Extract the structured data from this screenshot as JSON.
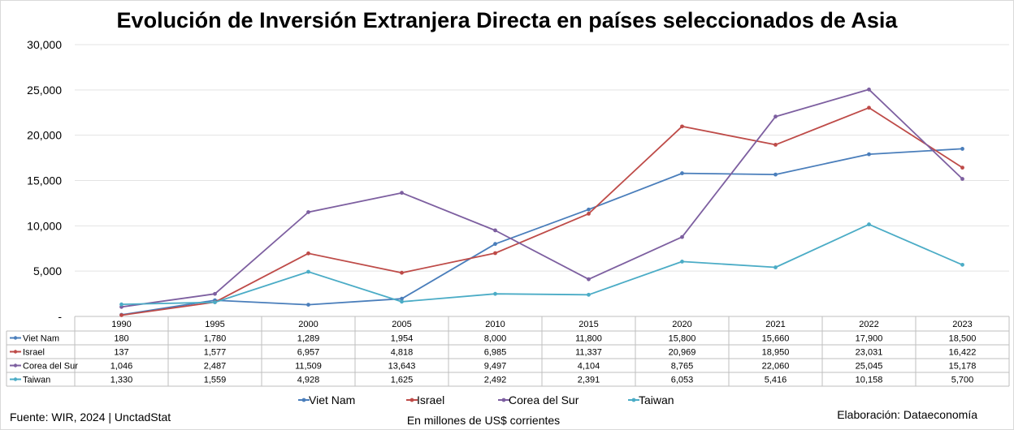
{
  "chart_data": {
    "type": "line",
    "title": "Evolución de Inversión Extranjera Directa en países seleccionados de Asia",
    "categories": [
      "1990",
      "1995",
      "2000",
      "2005",
      "2010",
      "2015",
      "2020",
      "2021",
      "2022",
      "2023"
    ],
    "series": [
      {
        "name": "Viet Nam",
        "color": "#4a7ebb",
        "values": [
          180,
          1780,
          1289,
          1954,
          8000,
          11800,
          15800,
          15660,
          17900,
          18500
        ],
        "labels": [
          "180",
          "1,780",
          "1,289",
          "1,954",
          "8,000",
          "11,800",
          "15,800",
          "15,660",
          "17,900",
          "18,500"
        ]
      },
      {
        "name": "Israel",
        "color": "#be4b48",
        "values": [
          137,
          1577,
          6957,
          4818,
          6985,
          11337,
          20969,
          18950,
          23031,
          16422
        ],
        "labels": [
          "137",
          "1,577",
          "6,957",
          "4,818",
          "6,985",
          "11,337",
          "20,969",
          "18,950",
          "23,031",
          "16,422"
        ]
      },
      {
        "name": "Corea del Sur",
        "color": "#7d5fa0",
        "values": [
          1046,
          2487,
          11509,
          13643,
          9497,
          4104,
          8765,
          22060,
          25045,
          15178
        ],
        "labels": [
          "1,046",
          "2,487",
          "11,509",
          "13,643",
          "9,497",
          "4,104",
          "8,765",
          "22,060",
          "25,045",
          "15,178"
        ]
      },
      {
        "name": "Taiwan",
        "color": "#4bacc6",
        "values": [
          1330,
          1559,
          4928,
          1625,
          2492,
          2391,
          6053,
          5416,
          10158,
          5700
        ],
        "labels": [
          "1,330",
          "1,559",
          "4,928",
          "1,625",
          "2,492",
          "2,391",
          "6,053",
          "5,416",
          "10,158",
          "5,700"
        ]
      }
    ],
    "yticks": [
      "-",
      "5,000",
      "10,000",
      "15,000",
      "20,000",
      "25,000",
      "30,000"
    ],
    "ylim": [
      0,
      30000
    ],
    "grid": true,
    "legend_position": "bottom",
    "ylabel": "",
    "xlabel": "",
    "unit_note": "En millones de US$ corrientes",
    "source": "Fuente: WIR, 2024 | UnctadStat",
    "credit": "Elaboración: Dataeconomía",
    "table_below_chart": true
  }
}
